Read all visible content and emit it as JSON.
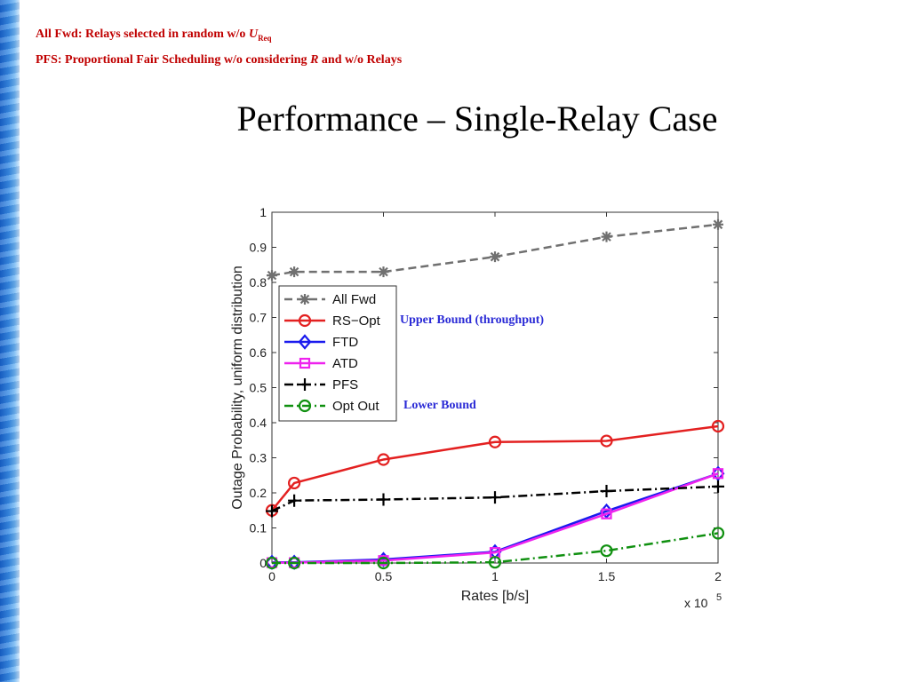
{
  "notes": {
    "line1_prefix": "All Fwd: Relays selected in random w/o ",
    "line1_var": "U",
    "line1_sub": "Req",
    "line2_prefix": "PFS: Proportional Fair Scheduling w/o considering ",
    "line2_var": "R",
    "line2_suffix": " and w/o Relays"
  },
  "page_title": "Performance – Single-Relay Case",
  "annotations": {
    "upper": "Upper Bound (throughput)",
    "lower": "Lower Bound"
  },
  "colors": {
    "notes_text": "#c00000",
    "annotation_text": "#2b2bd6",
    "side_bar": "#3a8ee6"
  },
  "chart_data": {
    "type": "line",
    "xlabel": "Rates [b/s]",
    "ylabel": "Outage Probability, uniform distribution",
    "x_multiplier_base": "x 10",
    "x_multiplier_exp": "5",
    "xlim": [
      0,
      2
    ],
    "ylim": [
      0,
      1
    ],
    "xticks": [
      0,
      0.5,
      1,
      1.5,
      2
    ],
    "xtick_labels": [
      "0",
      "0.5",
      "1",
      "1.5",
      "2"
    ],
    "yticks": [
      0,
      0.1,
      0.2,
      0.3,
      0.4,
      0.5,
      0.6,
      0.7,
      0.8,
      0.9,
      1
    ],
    "ytick_labels": [
      "0",
      "0.1",
      "0.2",
      "0.3",
      "0.4",
      "0.5",
      "0.6",
      "0.7",
      "0.8",
      "0.9",
      "1"
    ],
    "grid": false,
    "legend_position": "middle-left",
    "x": [
      0,
      0.1,
      0.5,
      1,
      1.5,
      2
    ],
    "series": [
      {
        "name": "All Fwd",
        "color": "#707070",
        "dash": "dashed",
        "marker": "asterisk",
        "values": [
          0.82,
          0.83,
          0.83,
          0.873,
          0.93,
          0.965
        ]
      },
      {
        "name": "RS−Opt",
        "color": "#e32020",
        "dash": "solid",
        "marker": "circle",
        "values": [
          0.15,
          0.228,
          0.295,
          0.345,
          0.348,
          0.39
        ]
      },
      {
        "name": "FTD",
        "color": "#1a1aee",
        "dash": "solid",
        "marker": "diamond",
        "values": [
          0.002,
          0.002,
          0.01,
          0.032,
          0.148,
          0.255
        ]
      },
      {
        "name": "ATD",
        "color": "#ee22ee",
        "dash": "solid",
        "marker": "square",
        "values": [
          0.001,
          0.001,
          0.007,
          0.03,
          0.14,
          0.255
        ]
      },
      {
        "name": "PFS",
        "color": "#000000",
        "dash": "dashdot",
        "marker": "plus",
        "values": [
          0.148,
          0.178,
          0.181,
          0.187,
          0.205,
          0.218
        ]
      },
      {
        "name": "Opt Out",
        "color": "#109010",
        "dash": "dashdot",
        "marker": "circle",
        "values": [
          0,
          0,
          0,
          0.002,
          0.035,
          0.085
        ]
      }
    ]
  }
}
